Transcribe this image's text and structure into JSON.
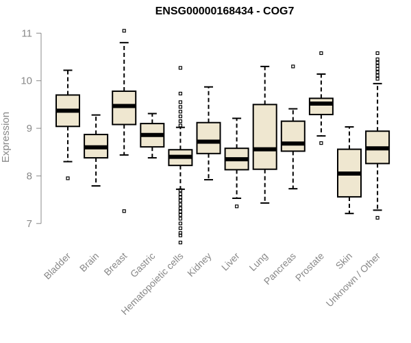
{
  "chart_data": {
    "type": "boxplot",
    "title": "ENSG00000168434 - COG7",
    "xlabel": "",
    "ylabel": "Expression",
    "ylim": [
      6.55,
      11.12
    ],
    "yticks": [
      "7",
      "8",
      "9",
      "10",
      "11"
    ],
    "box_fill": "#efe7d0",
    "box_stroke": "#000000",
    "categories": [
      "Bladder",
      "Brain",
      "Breast",
      "Gastric",
      "Hematopoietic cells",
      "Kidney",
      "Liver",
      "Lung",
      "Pancreas",
      "Prostate",
      "Skin",
      "Unknown / Other"
    ],
    "boxes": [
      {
        "name": "Bladder",
        "whisker_low": 8.3,
        "q1": 9.04,
        "median": 9.37,
        "q3": 9.7,
        "whisker_high": 10.22,
        "outliers": [
          7.95
        ]
      },
      {
        "name": "Brain",
        "whisker_low": 7.79,
        "q1": 8.38,
        "median": 8.6,
        "q3": 8.87,
        "whisker_high": 9.28,
        "outliers": []
      },
      {
        "name": "Breast",
        "whisker_low": 8.44,
        "q1": 9.08,
        "median": 9.47,
        "q3": 9.78,
        "whisker_high": 10.8,
        "outliers": [
          7.26,
          11.05
        ]
      },
      {
        "name": "Gastric",
        "whisker_low": 8.38,
        "q1": 8.61,
        "median": 8.86,
        "q3": 9.1,
        "whisker_high": 9.31,
        "outliers": []
      },
      {
        "name": "Hematopoietic cells",
        "whisker_low": 7.72,
        "q1": 8.22,
        "median": 8.4,
        "q3": 8.55,
        "whisker_high": 9.02,
        "outliers": [
          10.27,
          9.73,
          9.55,
          9.45,
          9.35,
          9.25,
          9.15,
          9.06,
          7.7,
          7.62,
          7.55,
          7.48,
          7.4,
          7.32,
          7.25,
          7.18,
          7.1,
          7.0,
          6.9,
          6.8,
          6.75,
          6.6
        ]
      },
      {
        "name": "Kidney",
        "whisker_low": 7.92,
        "q1": 8.47,
        "median": 8.72,
        "q3": 9.12,
        "whisker_high": 9.87,
        "outliers": []
      },
      {
        "name": "Liver",
        "whisker_low": 7.53,
        "q1": 8.13,
        "median": 8.35,
        "q3": 8.58,
        "whisker_high": 9.21,
        "outliers": [
          7.36
        ]
      },
      {
        "name": "Lung",
        "whisker_low": 7.43,
        "q1": 8.14,
        "median": 8.56,
        "q3": 9.5,
        "whisker_high": 10.3,
        "outliers": []
      },
      {
        "name": "Pancreas",
        "whisker_low": 7.73,
        "q1": 8.52,
        "median": 8.68,
        "q3": 9.15,
        "whisker_high": 9.41,
        "outliers": [
          10.3
        ]
      },
      {
        "name": "Prostate",
        "whisker_low": 8.84,
        "q1": 9.29,
        "median": 9.52,
        "q3": 9.63,
        "whisker_high": 10.14,
        "outliers": [
          10.58,
          8.69
        ]
      },
      {
        "name": "Skin",
        "whisker_low": 7.21,
        "q1": 7.56,
        "median": 8.05,
        "q3": 8.56,
        "whisker_high": 9.03,
        "outliers": []
      },
      {
        "name": "Unknown / Other",
        "whisker_low": 7.28,
        "q1": 8.26,
        "median": 8.58,
        "q3": 8.94,
        "whisker_high": 9.94,
        "outliers": [
          10.58,
          10.45,
          10.38,
          10.31,
          10.25,
          10.18,
          10.11,
          10.04,
          7.12
        ]
      }
    ]
  }
}
